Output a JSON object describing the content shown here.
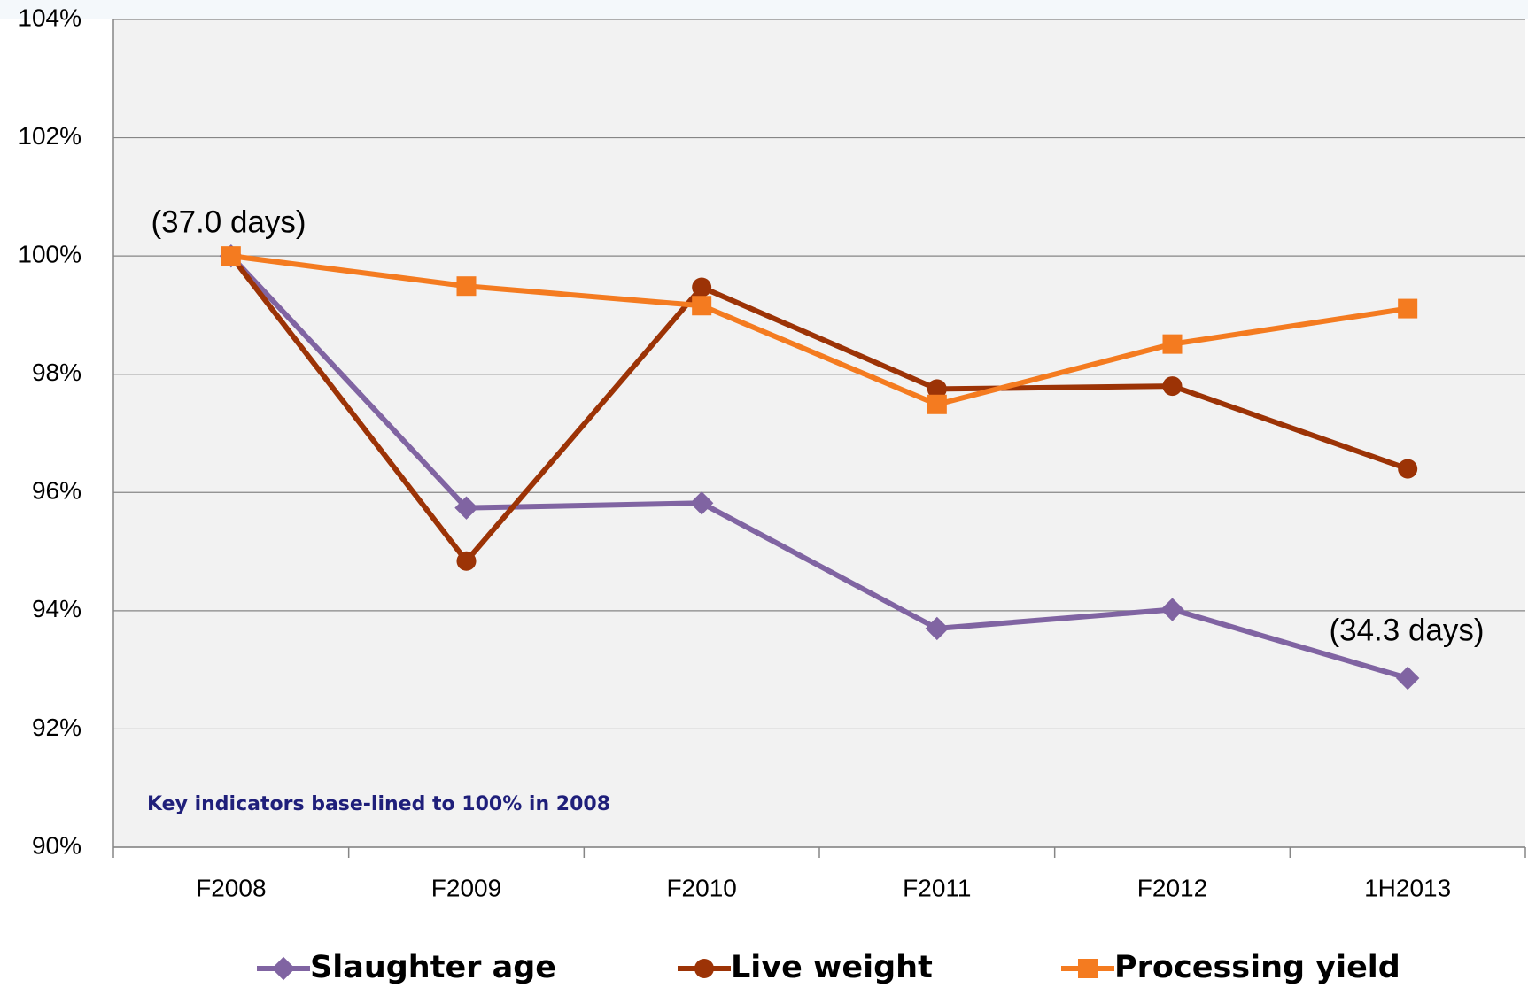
{
  "chart_data": {
    "type": "line",
    "categories": [
      "F2008",
      "F2009",
      "F2010",
      "F2011",
      "F2012",
      "1H2013"
    ],
    "series": [
      {
        "name": "Slaughter age",
        "color": "#8064a2",
        "marker": "diamond",
        "values": [
          100,
          95.74,
          95.82,
          93.7,
          94.02,
          92.86
        ]
      },
      {
        "name": "Live weight",
        "color": "#9c3306",
        "marker": "circle",
        "values": [
          100,
          94.84,
          99.47,
          97.75,
          97.8,
          96.4
        ]
      },
      {
        "name": "Processing yield",
        "color": "#f47b20",
        "marker": "square",
        "values": [
          100,
          99.49,
          99.16,
          97.49,
          98.51,
          99.11
        ]
      }
    ],
    "ylim": [
      90,
      104
    ],
    "yticks": [
      {
        "value": 90,
        "label": "90%"
      },
      {
        "value": 92,
        "label": "92%"
      },
      {
        "value": 94,
        "label": "94%"
      },
      {
        "value": 96,
        "label": "96%"
      },
      {
        "value": 98,
        "label": "98%"
      },
      {
        "value": 100,
        "label": "100%"
      },
      {
        "value": 102,
        "label": "102%"
      },
      {
        "value": 104,
        "label": "104%"
      }
    ],
    "grid": true,
    "legend": "bottom",
    "annotations": [
      "(37.0 days)",
      "(34.3 days)",
      "Key indicators base-lined  to  100% in 2008"
    ]
  }
}
